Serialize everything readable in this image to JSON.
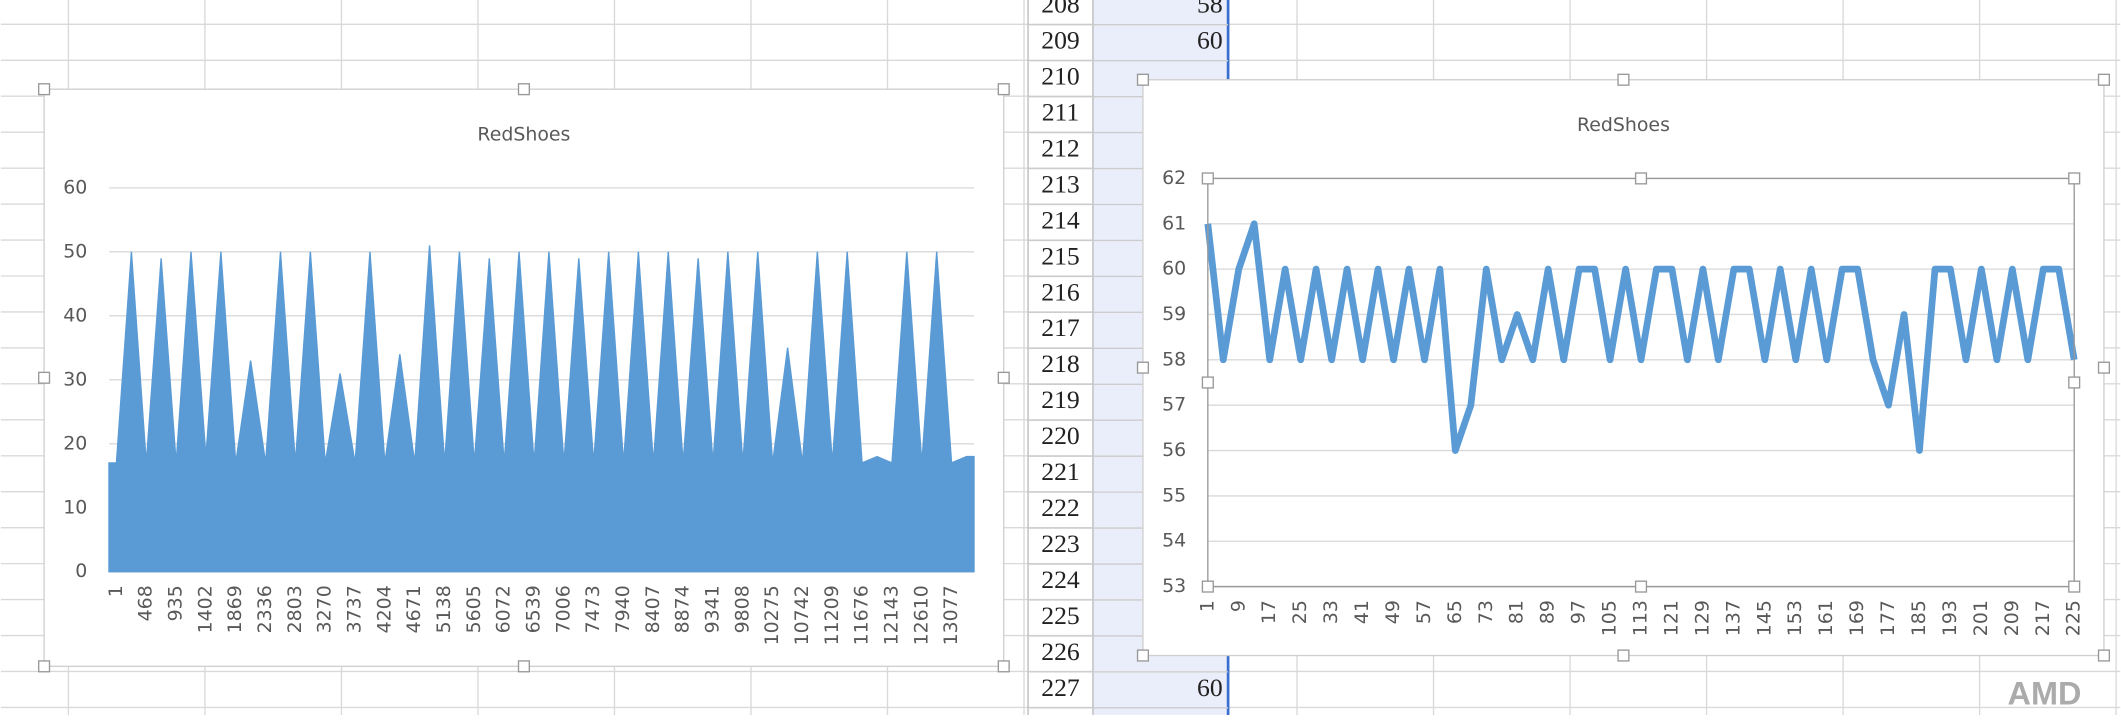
{
  "chart_data": [
    {
      "type": "area",
      "title": "RedShoes",
      "color": "#5b9bd5",
      "grid": true,
      "categories": [
        "1",
        null,
        "468",
        null,
        "935",
        null,
        "1402",
        null,
        "1869",
        null,
        "2336",
        null,
        "2803",
        null,
        "3270",
        null,
        "3737",
        null,
        "4204",
        null,
        "4671",
        null,
        "5138",
        null,
        "5605",
        null,
        "6072",
        null,
        "6539",
        null,
        "7006",
        null,
        "7473",
        null,
        "7940",
        null,
        "8407",
        null,
        "8874",
        null,
        "9341",
        null,
        "9808",
        null,
        "10275",
        null,
        "10742",
        null,
        "11209",
        null,
        "11676",
        null,
        "12143",
        null,
        "12610",
        null,
        "13077",
        null
      ],
      "values": [
        17,
        50,
        17,
        49,
        17,
        50,
        18,
        50,
        17,
        33,
        17,
        50,
        17,
        50,
        17,
        31,
        17,
        50,
        17,
        34,
        17,
        51,
        17,
        50,
        17,
        49,
        17,
        50,
        17,
        50,
        17,
        49,
        17,
        50,
        17,
        50,
        17,
        50,
        17,
        49,
        17,
        50,
        17,
        50,
        17,
        35,
        17,
        50,
        17,
        50,
        17,
        18,
        17,
        50,
        17,
        50,
        17,
        18
      ],
      "ylim": [
        0,
        60
      ],
      "yticks": [
        0,
        10,
        20,
        30,
        40,
        50,
        60
      ]
    },
    {
      "type": "line",
      "title": "RedShoes",
      "color": "#5b9bd5",
      "grid": true,
      "categories": [
        "1",
        null,
        "9",
        null,
        "17",
        null,
        "25",
        null,
        "33",
        null,
        "41",
        null,
        "49",
        null,
        "57",
        null,
        "65",
        null,
        "73",
        null,
        "81",
        null,
        "89",
        null,
        "97",
        null,
        "105",
        null,
        "113",
        null,
        "121",
        null,
        "129",
        null,
        "137",
        null,
        "145",
        null,
        "153",
        null,
        "161",
        null,
        "169",
        null,
        "177",
        null,
        "185",
        null,
        "193",
        null,
        "201",
        null,
        "209",
        null,
        "217",
        null,
        "225"
      ],
      "values": [
        61,
        58,
        60,
        61,
        58,
        60,
        58,
        60,
        58,
        60,
        58,
        60,
        58,
        60,
        58,
        60,
        56,
        57,
        60,
        58,
        59,
        58,
        60,
        58,
        60,
        60,
        58,
        60,
        58,
        60,
        60,
        58,
        60,
        58,
        60,
        60,
        58,
        60,
        58,
        60,
        58,
        60,
        60,
        58,
        57,
        59,
        56,
        60,
        60,
        58,
        60,
        58,
        60,
        58,
        60,
        60,
        58
      ],
      "ylim": [
        53,
        62
      ],
      "yticks": [
        53,
        54,
        55,
        56,
        57,
        58,
        59,
        60,
        61,
        62
      ]
    }
  ],
  "sheet": {
    "rows": [
      {
        "num": "208",
        "value": "58"
      },
      {
        "num": "209",
        "value": "60"
      },
      {
        "num": "210"
      },
      {
        "num": "211"
      },
      {
        "num": "212"
      },
      {
        "num": "213"
      },
      {
        "num": "214"
      },
      {
        "num": "215"
      },
      {
        "num": "216"
      },
      {
        "num": "217"
      },
      {
        "num": "218"
      },
      {
        "num": "219"
      },
      {
        "num": "220"
      },
      {
        "num": "221"
      },
      {
        "num": "222"
      },
      {
        "num": "223"
      },
      {
        "num": "224"
      },
      {
        "num": "225"
      },
      {
        "num": "226"
      },
      {
        "num": "227",
        "value": "60"
      }
    ]
  },
  "watermark": "AMD"
}
